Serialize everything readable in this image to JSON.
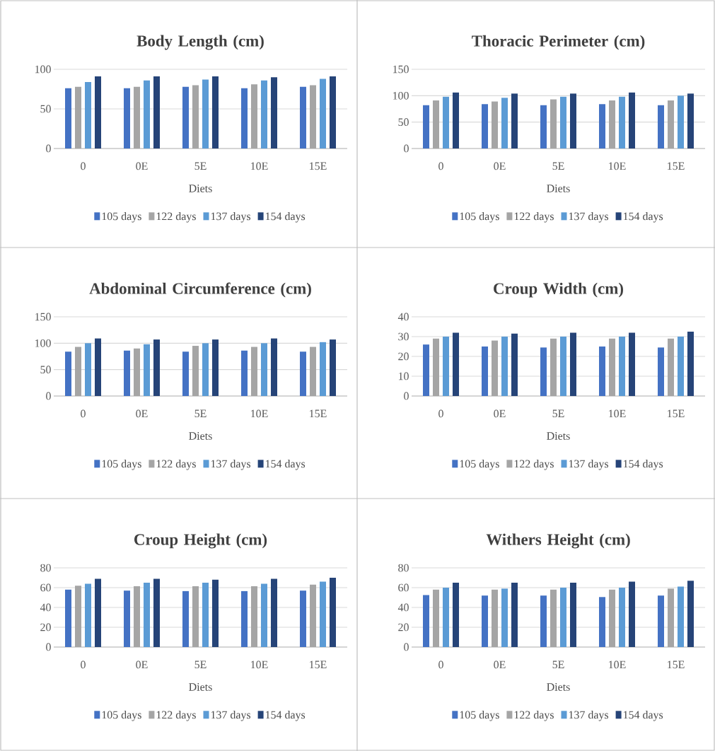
{
  "chart_data": [
    {
      "type": "bar",
      "title": "Body Length (cm)",
      "xlabel": "Diets",
      "categories": [
        "0",
        "0E",
        "5E",
        "10E",
        "15E"
      ],
      "ylim": [
        0,
        100
      ],
      "yticks": [
        0,
        50,
        100
      ],
      "grid": "y",
      "legend": "bottom",
      "series": [
        {
          "name": "105 days",
          "color": "#4472c4",
          "values": [
            76,
            76,
            78,
            76,
            78
          ]
        },
        {
          "name": "122 days",
          "color": "#a5a5a5",
          "values": [
            78,
            78,
            80,
            81,
            80
          ]
        },
        {
          "name": "137 days",
          "color": "#5b9bd5",
          "values": [
            84,
            86,
            87,
            86,
            88
          ]
        },
        {
          "name": "154 days",
          "color": "#264478",
          "values": [
            91,
            91,
            91,
            90,
            91
          ]
        }
      ]
    },
    {
      "type": "bar",
      "title": "Thoracic Perimeter (cm)",
      "xlabel": "Diets",
      "categories": [
        "0",
        "0E",
        "5E",
        "10E",
        "15E"
      ],
      "ylim": [
        0,
        150
      ],
      "yticks": [
        0,
        50,
        100,
        150
      ],
      "grid": "y",
      "legend": "bottom",
      "series": [
        {
          "name": "105 days",
          "color": "#4472c4",
          "values": [
            82,
            84,
            82,
            84,
            82
          ]
        },
        {
          "name": "122 days",
          "color": "#a5a5a5",
          "values": [
            91,
            89,
            93,
            91,
            91
          ]
        },
        {
          "name": "137 days",
          "color": "#5b9bd5",
          "values": [
            98,
            96,
            98,
            98,
            100
          ]
        },
        {
          "name": "154 days",
          "color": "#264478",
          "values": [
            106,
            104,
            104,
            106,
            104
          ]
        }
      ]
    },
    {
      "type": "bar",
      "title": "Abdominal Circumference (cm)",
      "xlabel": "Diets",
      "categories": [
        "0",
        "0E",
        "5E",
        "10E",
        "15E"
      ],
      "ylim": [
        0,
        150
      ],
      "yticks": [
        0,
        50,
        100,
        150
      ],
      "grid": "y",
      "legend": "bottom",
      "series": [
        {
          "name": "105 days",
          "color": "#4472c4",
          "values": [
            84,
            86,
            84,
            86,
            84
          ]
        },
        {
          "name": "122 days",
          "color": "#a5a5a5",
          "values": [
            93,
            90,
            95,
            93,
            93
          ]
        },
        {
          "name": "137 days",
          "color": "#5b9bd5",
          "values": [
            100,
            98,
            100,
            100,
            102
          ]
        },
        {
          "name": "154 days",
          "color": "#264478",
          "values": [
            109,
            107,
            107,
            109,
            107
          ]
        }
      ]
    },
    {
      "type": "bar",
      "title": "Croup Width (cm)",
      "xlabel": "Diets",
      "categories": [
        "0",
        "0E",
        "5E",
        "10E",
        "15E"
      ],
      "ylim": [
        0,
        40
      ],
      "yticks": [
        0,
        10,
        20,
        30,
        40
      ],
      "grid": "y",
      "legend": "bottom",
      "series": [
        {
          "name": "105 days",
          "color": "#4472c4",
          "values": [
            26,
            25,
            24.5,
            25,
            24.5
          ]
        },
        {
          "name": "122 days",
          "color": "#a5a5a5",
          "values": [
            29,
            28,
            29,
            29,
            29
          ]
        },
        {
          "name": "137 days",
          "color": "#5b9bd5",
          "values": [
            30,
            30,
            30,
            30,
            30
          ]
        },
        {
          "name": "154 days",
          "color": "#264478",
          "values": [
            32,
            31.5,
            32,
            32,
            32.5
          ]
        }
      ]
    },
    {
      "type": "bar",
      "title": "Croup Height (cm)",
      "xlabel": "Diets",
      "categories": [
        "0",
        "0E",
        "5E",
        "10E",
        "15E"
      ],
      "ylim": [
        0,
        80
      ],
      "yticks": [
        0,
        20,
        40,
        60,
        80
      ],
      "grid": "y",
      "legend": "bottom",
      "series": [
        {
          "name": "105 days",
          "color": "#4472c4",
          "values": [
            58,
            57,
            56.5,
            56.5,
            57
          ]
        },
        {
          "name": "122 days",
          "color": "#a5a5a5",
          "values": [
            62,
            61.5,
            61.5,
            61.5,
            63
          ]
        },
        {
          "name": "137 days",
          "color": "#5b9bd5",
          "values": [
            64,
            65,
            65,
            64,
            66
          ]
        },
        {
          "name": "154 days",
          "color": "#264478",
          "values": [
            69,
            69,
            68,
            69,
            70
          ]
        }
      ]
    },
    {
      "type": "bar",
      "title": "Withers Height (cm)",
      "xlabel": "Diets",
      "categories": [
        "0",
        "0E",
        "5E",
        "10E",
        "15E"
      ],
      "ylim": [
        0,
        80
      ],
      "yticks": [
        0,
        20,
        40,
        60,
        80
      ],
      "grid": "y",
      "legend": "bottom",
      "series": [
        {
          "name": "105 days",
          "color": "#4472c4",
          "values": [
            52.5,
            52,
            52,
            50.5,
            52
          ]
        },
        {
          "name": "122 days",
          "color": "#a5a5a5",
          "values": [
            58,
            58,
            58,
            58,
            59
          ]
        },
        {
          "name": "137 days",
          "color": "#5b9bd5",
          "values": [
            60,
            59,
            60,
            60,
            61
          ]
        },
        {
          "name": "154 days",
          "color": "#264478",
          "values": [
            65,
            65,
            65,
            66,
            67
          ]
        }
      ]
    }
  ]
}
